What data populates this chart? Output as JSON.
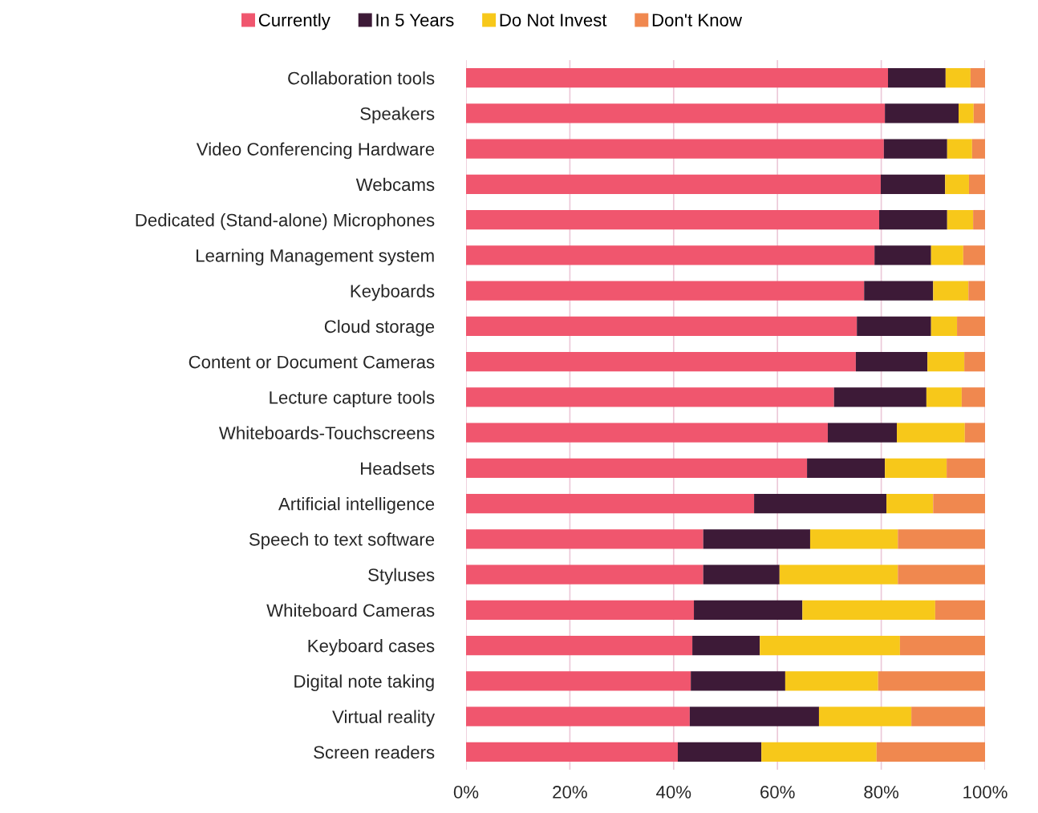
{
  "chart_data": {
    "type": "bar",
    "orientation": "horizontal",
    "stacked": true,
    "categories": [
      "Collaboration tools",
      "Speakers",
      "Video Conferencing Hardware",
      "Webcams",
      "Dedicated (Stand-alone) Microphones",
      "Learning Management system",
      "Keyboards",
      "Cloud storage",
      "Content or Document Cameras",
      "Lecture capture tools",
      "Whiteboards-Touchscreens",
      "Headsets",
      "Artificial intelligence",
      "Speech to text software",
      "Styluses",
      "Whiteboard Cameras",
      "Keyboard cases",
      "Digital note taking",
      "Virtual reality",
      "Screen readers"
    ],
    "series": [
      {
        "name": "Currently",
        "color": "#f0566e",
        "values": [
          81.3,
          80.7,
          80.5,
          79.9,
          79.6,
          78.7,
          76.7,
          75.3,
          75.1,
          70.9,
          69.7,
          65.7,
          55.5,
          45.7,
          45.7,
          43.9,
          43.6,
          43.3,
          43.1,
          40.8
        ]
      },
      {
        "name": "In 5 Years",
        "color": "#3d1a37",
        "values": [
          11.1,
          14.2,
          12.2,
          12.4,
          13.1,
          10.9,
          13.3,
          14.3,
          13.8,
          17.8,
          13.3,
          15.0,
          25.5,
          20.6,
          14.7,
          20.9,
          13.0,
          18.2,
          24.9,
          16.1
        ]
      },
      {
        "name": "Do Not Invest",
        "color": "#f7c81a",
        "values": [
          4.8,
          2.9,
          4.8,
          4.6,
          5.0,
          6.2,
          6.8,
          5.0,
          7.1,
          6.8,
          13.1,
          11.9,
          9.0,
          16.9,
          22.8,
          25.6,
          27.0,
          17.9,
          17.8,
          22.2
        ]
      },
      {
        "name": "Don't Know",
        "color": "#f0884f",
        "values": [
          2.8,
          2.2,
          2.5,
          3.1,
          2.3,
          4.2,
          3.2,
          5.4,
          4.0,
          4.5,
          3.9,
          7.4,
          10.0,
          16.8,
          16.8,
          9.6,
          16.4,
          20.6,
          14.2,
          20.9
        ]
      }
    ],
    "xlim": [
      0,
      100
    ],
    "xticks": [
      {
        "value": 0,
        "label": "0%"
      },
      {
        "value": 20,
        "label": "20%"
      },
      {
        "value": 40,
        "label": "40%"
      },
      {
        "value": 60,
        "label": "60%"
      },
      {
        "value": 80,
        "label": "80%"
      },
      {
        "value": 100,
        "label": "100%"
      }
    ],
    "grid": "x",
    "legend": "top"
  }
}
